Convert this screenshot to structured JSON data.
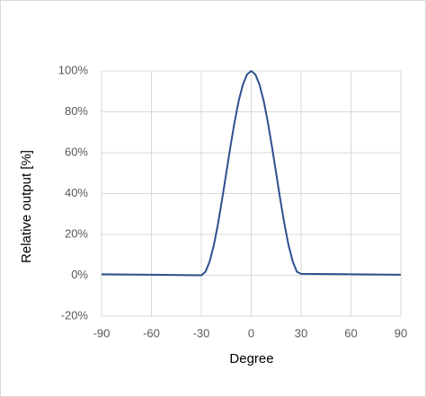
{
  "chart_data": {
    "type": "line",
    "xlabel": "Degree",
    "ylabel": "Relative output [%]",
    "x": [
      -90,
      -60,
      -30,
      -27.5,
      -25,
      -22.5,
      -20,
      -17.5,
      -15,
      -12.5,
      -10,
      -7.5,
      -5,
      -2.5,
      0,
      2.5,
      5,
      7.5,
      10,
      12.5,
      15,
      17.5,
      20,
      22.5,
      25,
      27.5,
      30,
      60,
      90
    ],
    "series": [
      {
        "color": "#2f4f8f",
        "values": [
          0.5,
          0.3,
          0,
          1.7,
          6.7,
          14.6,
          25,
          37.1,
          50,
          62.9,
          75,
          85.4,
          93.3,
          98.3,
          100,
          98.3,
          93.3,
          85.4,
          75,
          62.9,
          50,
          37.1,
          25,
          14.6,
          6.7,
          1.7,
          0.7,
          0.5,
          0.3
        ]
      }
    ],
    "xlim": [
      -90,
      90
    ],
    "xticks": [
      -90,
      -60,
      -30,
      0,
      30,
      60,
      90
    ],
    "ylim": [
      -20,
      100
    ],
    "yticks": [
      {
        "value": -20,
        "label": "-20%"
      },
      {
        "value": 0,
        "label": "0%"
      },
      {
        "value": 20,
        "label": "20%"
      },
      {
        "value": 40,
        "label": "40%"
      },
      {
        "value": 60,
        "label": "60%"
      },
      {
        "value": 80,
        "label": "80%"
      },
      {
        "value": 100,
        "label": "100%"
      }
    ],
    "grid": true
  }
}
